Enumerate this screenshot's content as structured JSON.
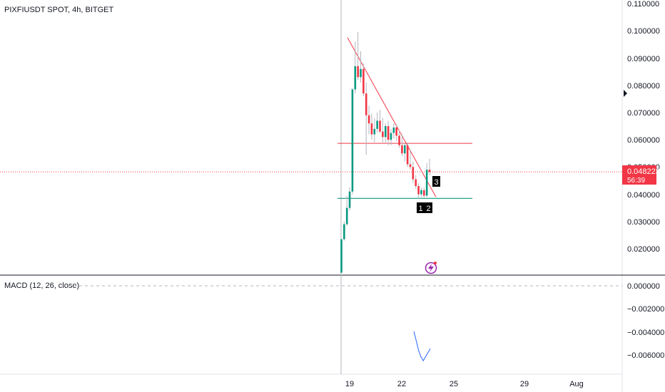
{
  "header": {
    "symbol_title": "PIXFIUSDT SPOT, 4h, BITGET"
  },
  "price_panel": {
    "y_ticks": [
      "0.110000",
      "0.100000",
      "0.090000",
      "0.080000",
      "0.070000",
      "0.060000",
      "0.050000",
      "0.040000",
      "0.030000",
      "0.020000"
    ],
    "last_price_label": "0.048223",
    "countdown_label": "56:39",
    "last_price_color": "#f23645"
  },
  "macd_panel": {
    "title": "MACD (12, 26, close)",
    "y_ticks": [
      "0.000000",
      "−0.002000",
      "−0.004000",
      "−0.006000"
    ]
  },
  "x_axis": {
    "ticks": [
      "19",
      "22",
      "25",
      "29",
      "Aug"
    ]
  },
  "markers": [
    "1",
    "2",
    "3"
  ],
  "colors": {
    "up": "#089981",
    "down": "#f23645",
    "resistance_line": "#f23645",
    "support_line": "#089981",
    "trendline": "#f23645",
    "macd_line": "#2962ff",
    "event_icon": "#9c27b0"
  },
  "chart_data": [
    {
      "type": "candlestick",
      "title": "PIXFIUSDT SPOT, 4h, BITGET",
      "ylim": [
        0.011,
        0.111
      ],
      "last_price": 0.048223,
      "horizontal_levels": [
        0.0587,
        0.0385
      ],
      "trendline": [
        [
          0.0975,
          0
        ],
        [
          0.039,
          0
        ]
      ],
      "candles": [
        {
          "o": 0.0112,
          "h": 0.0235,
          "l": 0.0112,
          "c": 0.0235
        },
        {
          "o": 0.0235,
          "h": 0.03,
          "l": 0.023,
          "c": 0.029
        },
        {
          "o": 0.029,
          "h": 0.0395,
          "l": 0.0285,
          "c": 0.035
        },
        {
          "o": 0.035,
          "h": 0.0425,
          "l": 0.034,
          "c": 0.041
        },
        {
          "o": 0.041,
          "h": 0.079,
          "l": 0.04,
          "c": 0.0785
        },
        {
          "o": 0.0785,
          "h": 0.096,
          "l": 0.077,
          "c": 0.087
        },
        {
          "o": 0.087,
          "h": 0.0995,
          "l": 0.082,
          "c": 0.083
        },
        {
          "o": 0.083,
          "h": 0.0925,
          "l": 0.081,
          "c": 0.086
        },
        {
          "o": 0.086,
          "h": 0.088,
          "l": 0.076,
          "c": 0.077
        },
        {
          "o": 0.077,
          "h": 0.081,
          "l": 0.0545,
          "c": 0.069
        },
        {
          "o": 0.069,
          "h": 0.0725,
          "l": 0.062,
          "c": 0.066
        },
        {
          "o": 0.066,
          "h": 0.0695,
          "l": 0.06,
          "c": 0.062
        },
        {
          "o": 0.062,
          "h": 0.068,
          "l": 0.059,
          "c": 0.064
        },
        {
          "o": 0.064,
          "h": 0.07,
          "l": 0.0625,
          "c": 0.067
        },
        {
          "o": 0.067,
          "h": 0.071,
          "l": 0.0625,
          "c": 0.063
        },
        {
          "o": 0.063,
          "h": 0.068,
          "l": 0.059,
          "c": 0.061
        },
        {
          "o": 0.061,
          "h": 0.066,
          "l": 0.059,
          "c": 0.065
        },
        {
          "o": 0.065,
          "h": 0.067,
          "l": 0.058,
          "c": 0.06
        },
        {
          "o": 0.06,
          "h": 0.064,
          "l": 0.058,
          "c": 0.0625
        },
        {
          "o": 0.0625,
          "h": 0.066,
          "l": 0.0605,
          "c": 0.0645
        },
        {
          "o": 0.0645,
          "h": 0.0655,
          "l": 0.0595,
          "c": 0.0615
        },
        {
          "o": 0.0615,
          "h": 0.0635,
          "l": 0.057,
          "c": 0.058
        },
        {
          "o": 0.058,
          "h": 0.062,
          "l": 0.054,
          "c": 0.055
        },
        {
          "o": 0.055,
          "h": 0.059,
          "l": 0.052,
          "c": 0.058
        },
        {
          "o": 0.058,
          "h": 0.059,
          "l": 0.05,
          "c": 0.051
        },
        {
          "o": 0.051,
          "h": 0.056,
          "l": 0.049,
          "c": 0.05
        },
        {
          "o": 0.05,
          "h": 0.052,
          "l": 0.044,
          "c": 0.0455
        },
        {
          "o": 0.0455,
          "h": 0.047,
          "l": 0.042,
          "c": 0.043
        },
        {
          "o": 0.043,
          "h": 0.044,
          "l": 0.0385,
          "c": 0.04
        },
        {
          "o": 0.04,
          "h": 0.0425,
          "l": 0.039,
          "c": 0.0415
        },
        {
          "o": 0.0415,
          "h": 0.0425,
          "l": 0.0385,
          "c": 0.0395
        },
        {
          "o": 0.0395,
          "h": 0.0515,
          "l": 0.039,
          "c": 0.049
        },
        {
          "o": 0.049,
          "h": 0.053,
          "l": 0.047,
          "c": 0.0482
        }
      ]
    },
    {
      "type": "line",
      "title": "MACD (12, 26, close)",
      "ylim": [
        -0.0072,
        0.0007
      ],
      "series": [
        {
          "values": [
            -0.00395,
            -0.00475,
            -0.0056,
            -0.00615,
            -0.0065,
            -0.00615,
            -0.0058,
            -0.00545
          ]
        }
      ]
    }
  ]
}
